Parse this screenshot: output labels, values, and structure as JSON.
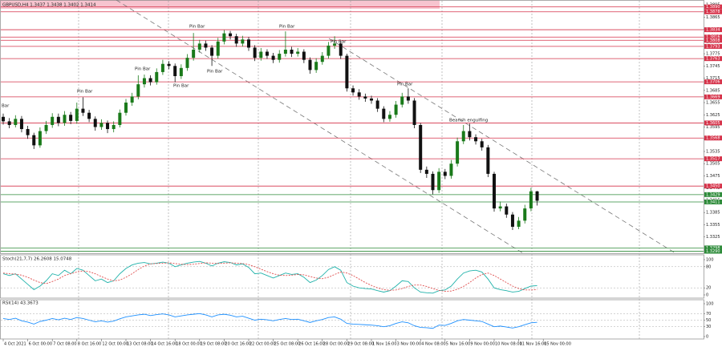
{
  "chart_data": [
    {
      "type": "candlestick",
      "title": "GBPUSD,H4 1.3437 1.3438 1.3402 1.3414",
      "ylim": [
        1.3285,
        1.3905
      ],
      "yticks": [
        1.3895,
        1.3865,
        1.3835,
        1.3805,
        1.3775,
        1.3745,
        1.3715,
        1.3685,
        1.3655,
        1.3625,
        1.3595,
        1.3565,
        1.3535,
        1.3505,
        1.3475,
        1.3445,
        1.3415,
        1.3385,
        1.3355,
        1.3325
      ],
      "xticks": [
        {
          "value": 0,
          "label": "4 Oct 2021"
        },
        {
          "value": 4,
          "label": "6 Oct 00:00"
        },
        {
          "value": 8,
          "label": "7 Oct 08:00"
        },
        {
          "value": 12,
          "label": "8 Oct 16:00"
        },
        {
          "value": 16,
          "label": "12 Oct 00:00"
        },
        {
          "value": 20,
          "label": "13 Oct 08:00"
        },
        {
          "value": 24,
          "label": "14 Oct 16:00"
        },
        {
          "value": 28,
          "label": "18 Oct 00:00"
        },
        {
          "value": 32,
          "label": "19 Oct 08:00"
        },
        {
          "value": 36,
          "label": "20 Oct 16:00"
        },
        {
          "value": 40,
          "label": "22 Oct 00:00"
        },
        {
          "value": 44,
          "label": "25 Oct 08:00"
        },
        {
          "value": 48,
          "label": "26 Oct 16:00"
        },
        {
          "value": 52,
          "label": "28 Oct 00:00"
        },
        {
          "value": 56,
          "label": "29 Oct 08:00"
        },
        {
          "value": 60,
          "label": "1 Nov 16:00"
        },
        {
          "value": 64,
          "label": "3 Nov 00:00"
        },
        {
          "value": 68,
          "label": "4 Nov 08:00"
        },
        {
          "value": 72,
          "label": "5 Nov 16:00"
        },
        {
          "value": 76,
          "label": "9 Nov 00:00"
        },
        {
          "value": 80,
          "label": "10 Nov 08:00"
        },
        {
          "value": 84,
          "label": "11 Nov 16:00"
        },
        {
          "value": 88,
          "label": "15 Nov 00:00"
        }
      ],
      "bull_color": "#1a7a1a",
      "bear_color": "#111111",
      "levels": [
        {
          "value": 1.389,
          "label": "1.3890",
          "color": "#d6334a"
        },
        {
          "value": 1.3878,
          "color": "#d6334a"
        },
        {
          "value": 1.3834,
          "color": "#d6334a"
        },
        {
          "value": 1.3816,
          "color": "#d6334a"
        },
        {
          "value": 1.3808,
          "color": "#d6334a"
        },
        {
          "value": 1.3793,
          "color": "#d6334a"
        },
        {
          "value": 1.3763,
          "color": "#d6334a"
        },
        {
          "value": 1.3706,
          "color": "#d6334a"
        },
        {
          "value": 1.3669,
          "color": "#d6334a"
        },
        {
          "value": 1.3605,
          "color": "#d6334a"
        },
        {
          "value": 1.3568,
          "color": "#d6334a"
        },
        {
          "value": 1.3517,
          "color": "#d6334a"
        },
        {
          "value": 1.345,
          "label": "1.3450",
          "color": "#d6334a"
        },
        {
          "value": 1.3429,
          "color": "#2e8b3a"
        },
        {
          "value": 1.3411,
          "color": "#2e8b3a"
        },
        {
          "value": 1.3298,
          "color": "#2e8b3a"
        },
        {
          "value": 1.329,
          "label": "1.3290",
          "color": "#2e8b3a"
        }
      ],
      "annotations": [
        "Bar",
        "Pin Bar",
        "Pin Bar",
        "Pin Bar",
        "Pin Bar",
        "Pin Bar",
        "Pin Bar",
        "Pin Bar",
        "Pin Bar",
        "Bearish engulfing"
      ],
      "candles": [
        [
          1.362,
          1.3628,
          1.3601,
          1.3609
        ],
        [
          1.3609,
          1.3617,
          1.3592,
          1.36
        ],
        [
          1.36,
          1.3624,
          1.3594,
          1.3615
        ],
        [
          1.3615,
          1.3622,
          1.3582,
          1.359
        ],
        [
          1.359,
          1.3598,
          1.3566,
          1.3575
        ],
        [
          1.3575,
          1.3581,
          1.3541,
          1.355
        ],
        [
          1.355,
          1.3594,
          1.3544,
          1.3585
        ],
        [
          1.3585,
          1.361,
          1.3578,
          1.36
        ],
        [
          1.36,
          1.3629,
          1.3593,
          1.362
        ],
        [
          1.362,
          1.3628,
          1.3597,
          1.3605
        ],
        [
          1.3605,
          1.3634,
          1.3598,
          1.3625
        ],
        [
          1.3625,
          1.3632,
          1.3602,
          1.361
        ],
        [
          1.361,
          1.3655,
          1.3603,
          1.364
        ],
        [
          1.364,
          1.3668,
          1.3622,
          1.363
        ],
        [
          1.363,
          1.3637,
          1.3607,
          1.3615
        ],
        [
          1.3615,
          1.3621,
          1.3586,
          1.3595
        ],
        [
          1.3595,
          1.3614,
          1.3588,
          1.3605
        ],
        [
          1.3605,
          1.3611,
          1.358,
          1.359
        ],
        [
          1.359,
          1.3609,
          1.3582,
          1.36
        ],
        [
          1.36,
          1.3638,
          1.3594,
          1.363
        ],
        [
          1.363,
          1.3664,
          1.3623,
          1.3655
        ],
        [
          1.3655,
          1.3679,
          1.3647,
          1.367
        ],
        [
          1.367,
          1.3722,
          1.3663,
          1.37
        ],
        [
          1.37,
          1.3724,
          1.3692,
          1.3715
        ],
        [
          1.3715,
          1.3722,
          1.3697,
          1.3705
        ],
        [
          1.3705,
          1.3739,
          1.3699,
          1.373
        ],
        [
          1.373,
          1.376,
          1.3723,
          1.375
        ],
        [
          1.375,
          1.3757,
          1.3737,
          1.3745
        ],
        [
          1.3745,
          1.3751,
          1.3705,
          1.372
        ],
        [
          1.372,
          1.3749,
          1.3713,
          1.374
        ],
        [
          1.374,
          1.3774,
          1.3733,
          1.3765
        ],
        [
          1.3765,
          1.3826,
          1.3758,
          1.3785
        ],
        [
          1.3785,
          1.3809,
          1.3778,
          1.38
        ],
        [
          1.38,
          1.3807,
          1.3782,
          1.379
        ],
        [
          1.379,
          1.3796,
          1.3745,
          1.377
        ],
        [
          1.377,
          1.3814,
          1.3763,
          1.3805
        ],
        [
          1.3805,
          1.3833,
          1.3798,
          1.3825
        ],
        [
          1.3825,
          1.3831,
          1.381,
          1.3818
        ],
        [
          1.3818,
          1.3824,
          1.3792,
          1.38
        ],
        [
          1.38,
          1.3819,
          1.3793,
          1.381
        ],
        [
          1.381,
          1.3816,
          1.3782,
          1.379
        ],
        [
          1.379,
          1.3796,
          1.3757,
          1.3765
        ],
        [
          1.3765,
          1.3789,
          1.3758,
          1.378
        ],
        [
          1.378,
          1.3786,
          1.3762,
          1.377
        ],
        [
          1.377,
          1.3777,
          1.3752,
          1.376
        ],
        [
          1.376,
          1.3784,
          1.3753,
          1.3775
        ],
        [
          1.3775,
          1.383,
          1.3768,
          1.3785
        ],
        [
          1.3785,
          1.3792,
          1.3767,
          1.3775
        ],
        [
          1.3775,
          1.3789,
          1.3768,
          1.378
        ],
        [
          1.378,
          1.3786,
          1.3752,
          1.376
        ],
        [
          1.376,
          1.3766,
          1.3726,
          1.3735
        ],
        [
          1.3735,
          1.3764,
          1.3728,
          1.3755
        ],
        [
          1.3755,
          1.3779,
          1.3748,
          1.377
        ],
        [
          1.377,
          1.3804,
          1.3763,
          1.3795
        ],
        [
          1.3795,
          1.3818,
          1.3787,
          1.38
        ],
        [
          1.38,
          1.3806,
          1.3762,
          1.377
        ],
        [
          1.377,
          1.3775,
          1.3682,
          1.369
        ],
        [
          1.369,
          1.3697,
          1.3672,
          1.368
        ],
        [
          1.368,
          1.3688,
          1.3662,
          1.367
        ],
        [
          1.367,
          1.3677,
          1.3657,
          1.3665
        ],
        [
          1.3665,
          1.3672,
          1.3652,
          1.366
        ],
        [
          1.366,
          1.3666,
          1.3632,
          1.364
        ],
        [
          1.364,
          1.3646,
          1.3607,
          1.3615
        ],
        [
          1.3615,
          1.3634,
          1.3608,
          1.3625
        ],
        [
          1.3625,
          1.3659,
          1.3618,
          1.365
        ],
        [
          1.365,
          1.3679,
          1.3643,
          1.367
        ],
        [
          1.367,
          1.369,
          1.3652,
          1.366
        ],
        [
          1.366,
          1.3666,
          1.3592,
          1.36
        ],
        [
          1.36,
          1.3605,
          1.3482,
          1.349
        ],
        [
          1.349,
          1.3498,
          1.347,
          1.348
        ],
        [
          1.348,
          1.3486,
          1.343,
          1.344
        ],
        [
          1.344,
          1.3494,
          1.3433,
          1.3485
        ],
        [
          1.3485,
          1.3492,
          1.3467,
          1.3475
        ],
        [
          1.3475,
          1.3514,
          1.3468,
          1.3505
        ],
        [
          1.3505,
          1.3569,
          1.3498,
          1.356
        ],
        [
          1.356,
          1.36,
          1.3553,
          1.3585
        ],
        [
          1.3585,
          1.3603,
          1.3562,
          1.357
        ],
        [
          1.357,
          1.3577,
          1.3552,
          1.356
        ],
        [
          1.356,
          1.3566,
          1.3537,
          1.3545
        ],
        [
          1.3545,
          1.3551,
          1.3472,
          1.348
        ],
        [
          1.348,
          1.3485,
          1.3387,
          1.3395
        ],
        [
          1.3395,
          1.3412,
          1.3388,
          1.34
        ],
        [
          1.34,
          1.3407,
          1.3372,
          1.338
        ],
        [
          1.338,
          1.3386,
          1.3342,
          1.335
        ],
        [
          1.335,
          1.3374,
          1.3344,
          1.3365
        ],
        [
          1.3365,
          1.3404,
          1.3358,
          1.3395
        ],
        [
          1.3395,
          1.3446,
          1.3388,
          1.3437
        ],
        [
          1.3437,
          1.3438,
          1.3402,
          1.3414
        ]
      ]
    },
    {
      "type": "line",
      "title": "Stoch(21,7,7) 26.2608 15.0748",
      "ylim": [
        0,
        100
      ],
      "yticks": [
        100,
        80,
        20,
        0
      ],
      "series": [
        {
          "color": "#20b2aa",
          "dash": false,
          "values": [
            60,
            55,
            60,
            45,
            30,
            15,
            25,
            40,
            60,
            55,
            70,
            60,
            75,
            70,
            55,
            40,
            45,
            35,
            40,
            60,
            75,
            85,
            90,
            92,
            88,
            90,
            93,
            90,
            80,
            85,
            90,
            93,
            95,
            90,
            82,
            90,
            94,
            92,
            85,
            88,
            78,
            60,
            62,
            55,
            48,
            55,
            62,
            58,
            60,
            50,
            35,
            42,
            55,
            72,
            80,
            70,
            35,
            25,
            20,
            18,
            17,
            12,
            8,
            12,
            25,
            40,
            38,
            20,
            8,
            6,
            5,
            12,
            14,
            25,
            45,
            62,
            68,
            70,
            65,
            45,
            20,
            15,
            12,
            8,
            10,
            18,
            25,
            26.2608
          ]
        },
        {
          "color": "#e05050",
          "dash": true,
          "values": [
            62,
            60,
            59,
            56,
            50,
            42,
            35,
            32,
            38,
            45,
            55,
            60,
            65,
            68,
            66,
            60,
            52,
            45,
            40,
            42,
            50,
            60,
            72,
            82,
            88,
            89,
            90,
            91,
            89,
            87,
            86,
            87,
            89,
            91,
            90,
            89,
            90,
            91,
            90,
            89,
            86,
            80,
            73,
            66,
            60,
            56,
            55,
            56,
            58,
            57,
            52,
            48,
            46,
            50,
            58,
            65,
            62,
            55,
            45,
            35,
            27,
            20,
            15,
            13,
            14,
            18,
            24,
            28,
            28,
            24,
            18,
            13,
            10,
            11,
            16,
            24,
            35,
            48,
            58,
            62,
            55,
            45,
            35,
            25,
            18,
            14,
            14,
            15.0748
          ]
        }
      ]
    },
    {
      "type": "line",
      "title": "RSI(14) 43.3673",
      "ylim": [
        0,
        100
      ],
      "yticks": [
        100,
        70,
        50,
        30,
        0
      ],
      "series": [
        {
          "color": "#1e90ff",
          "dash": false,
          "values": [
            55,
            52,
            56,
            48,
            44,
            38,
            46,
            50,
            55,
            51,
            56,
            52,
            58,
            55,
            50,
            45,
            48,
            44,
            47,
            54,
            60,
            63,
            66,
            68,
            64,
            67,
            69,
            66,
            60,
            63,
            66,
            68,
            70,
            66,
            60,
            66,
            68,
            65,
            60,
            62,
            56,
            50,
            53,
            51,
            48,
            52,
            55,
            52,
            53,
            48,
            43,
            48,
            52,
            58,
            60,
            53,
            40,
            38,
            37,
            36,
            35,
            33,
            30,
            33,
            40,
            45,
            42,
            33,
            28,
            27,
            25,
            35,
            34,
            40,
            48,
            52,
            50,
            48,
            46,
            38,
            30,
            32,
            29,
            26,
            30,
            36,
            42,
            43.3673
          ]
        }
      ]
    }
  ]
}
